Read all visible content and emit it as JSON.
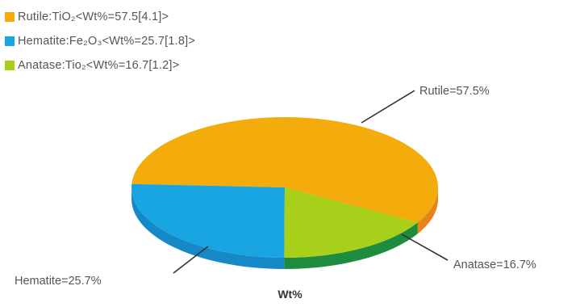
{
  "chart_data": {
    "type": "pie",
    "title": "Wt%",
    "series": [
      {
        "values": [
          57.5,
          25.7,
          16.7
        ],
        "categories": [
          "Rutile",
          "Hematite",
          "Anatase"
        ]
      }
    ],
    "legend_position": "top-left",
    "legend": [
      "Rutile:TiO₂<Wt%=57.5[4.1]>",
      "Hematite:Fe₂O₃<Wt%=25.7[1.8]>",
      "Anatase:Tio₂<Wt%=16.7[1.2]>"
    ],
    "slice_labels": [
      "Rutile=57.5%",
      "Hematite=25.7%",
      "Anatase=16.7%"
    ],
    "colors": {
      "top": [
        "#f4ab0c",
        "#19a5e2",
        "#a8cf1a"
      ],
      "side": [
        "#e6831b",
        "#1588c7",
        "#1e8c3f"
      ],
      "legend": [
        "#f4ab0c",
        "#19a5e2",
        "#a8cf1a"
      ]
    }
  }
}
